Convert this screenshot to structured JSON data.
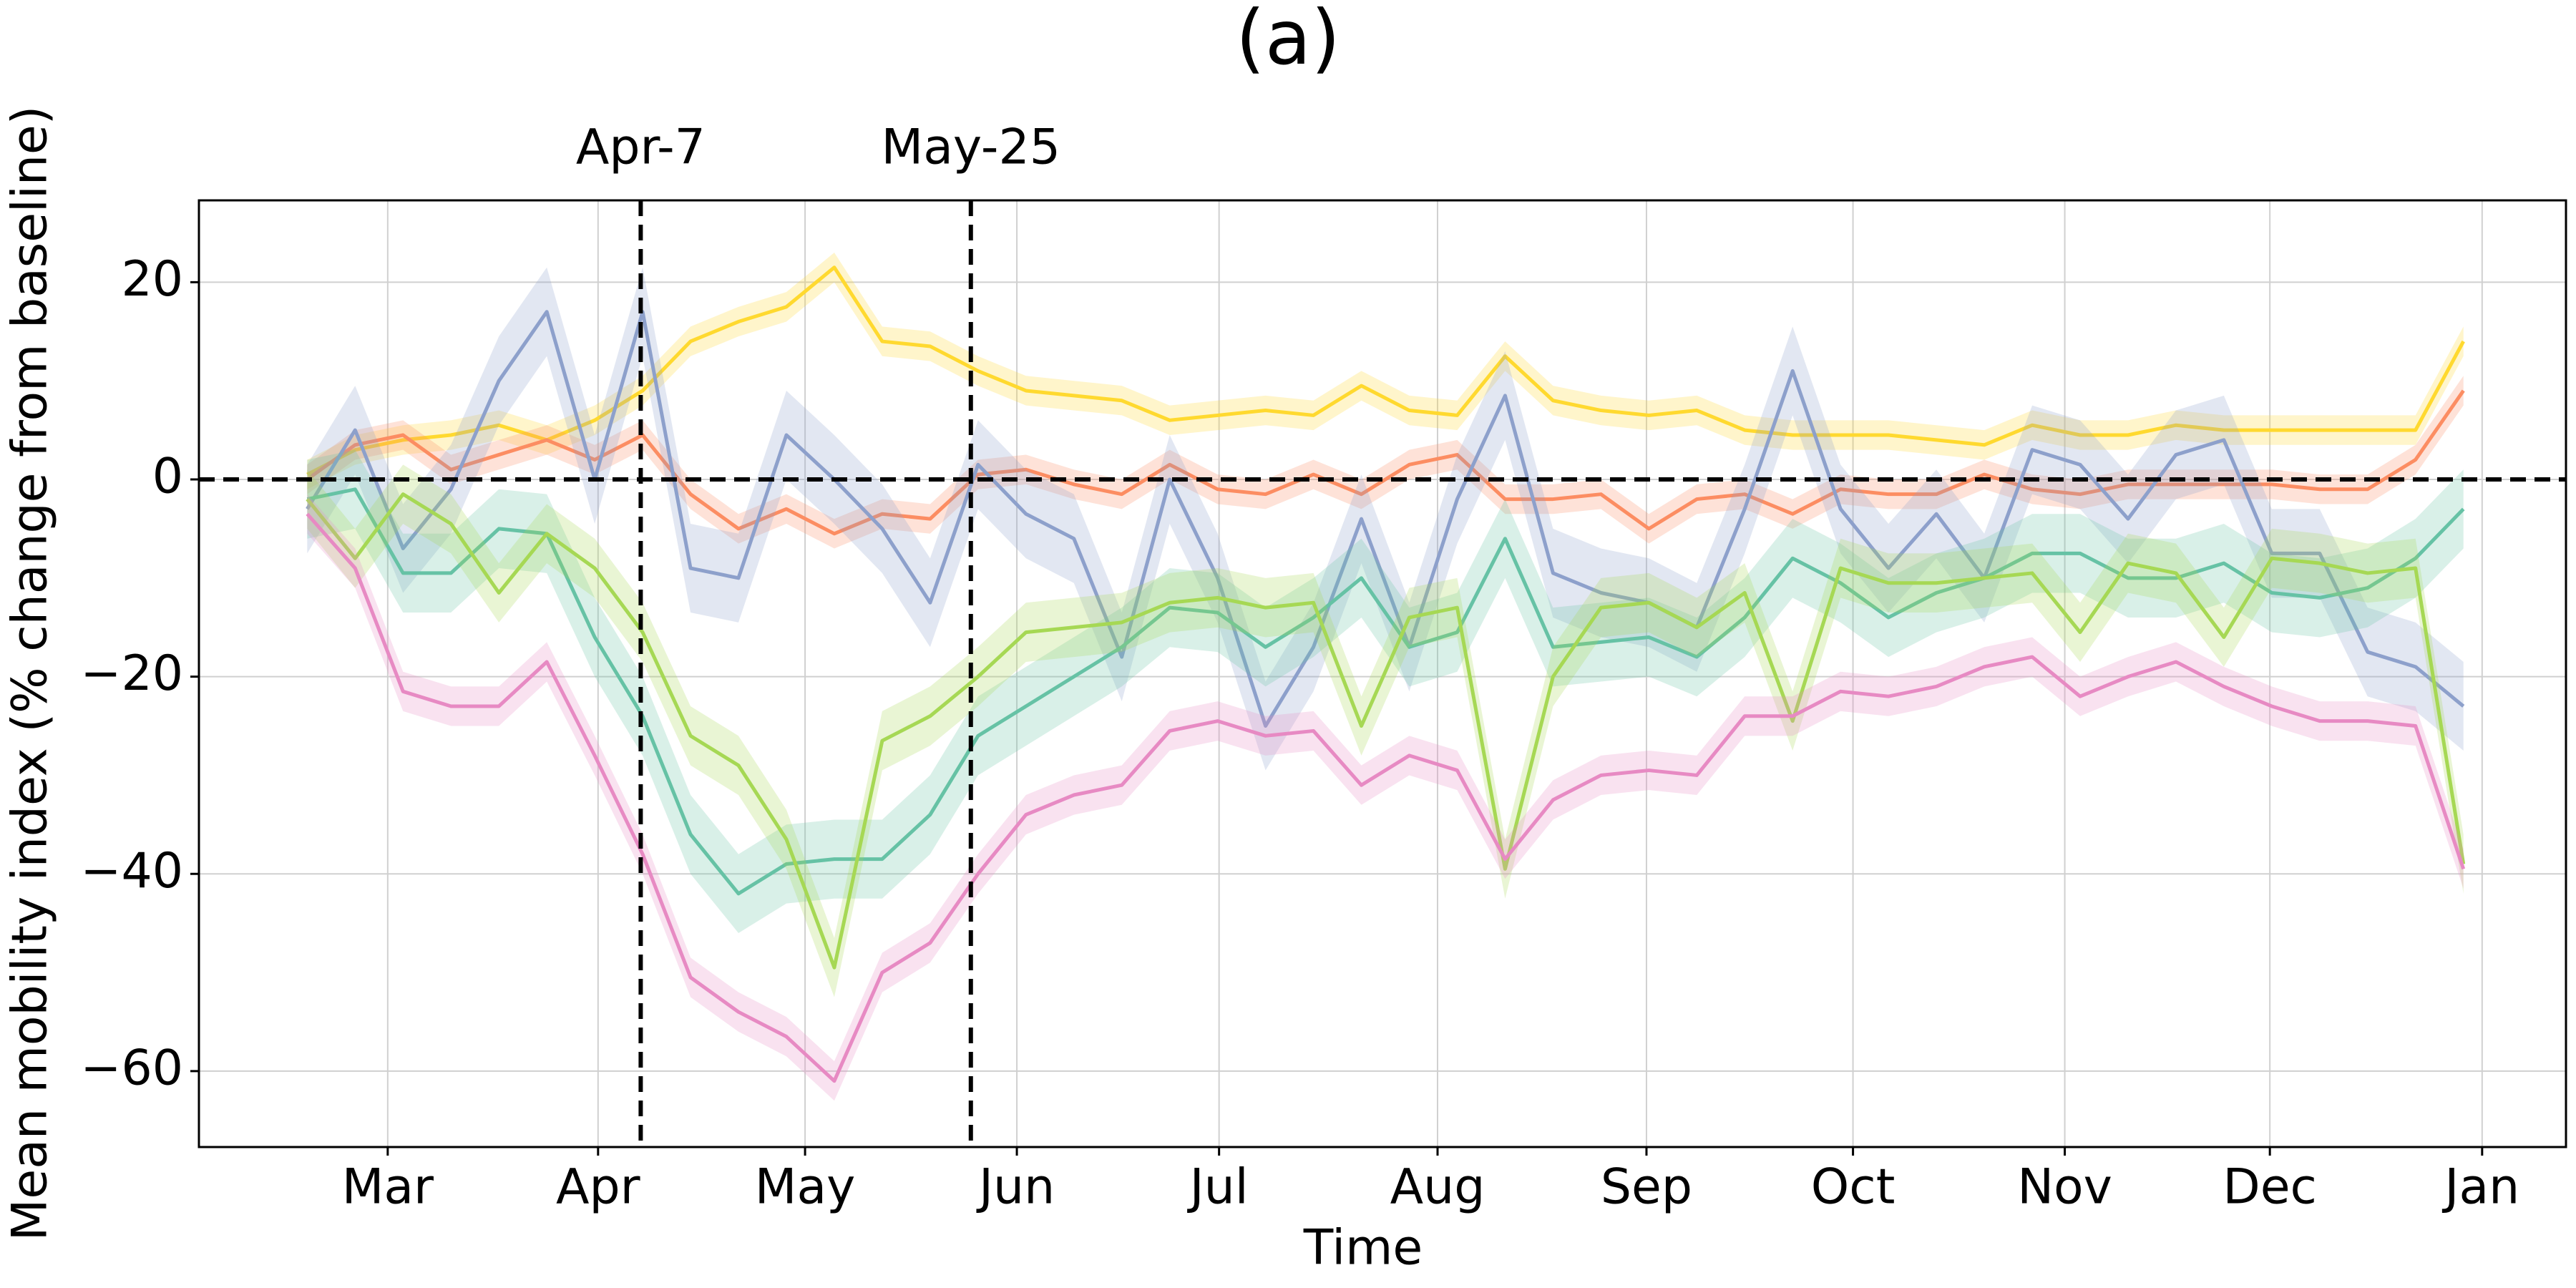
{
  "chart_data": {
    "type": "line",
    "title": "(a)",
    "xlabel": "Time",
    "ylabel": "Mean mobility index (% change from baseline)",
    "x": [
      0,
      1,
      2,
      3,
      4,
      5,
      6,
      7,
      8,
      9,
      10,
      11,
      12,
      13,
      14,
      15,
      16,
      17,
      18,
      19,
      20,
      21,
      22,
      23,
      24,
      25,
      26,
      27,
      28,
      29,
      30,
      31,
      32,
      33,
      34,
      35,
      36,
      37,
      38,
      39,
      40,
      41,
      42,
      43,
      44,
      45
    ],
    "xlim": [
      -2.26,
      47.14
    ],
    "xticks": [
      {
        "value": 1.68,
        "label": "Mar"
      },
      {
        "value": 6.07,
        "label": "Apr"
      },
      {
        "value": 10.39,
        "label": "May"
      },
      {
        "value": 14.81,
        "label": "Jun"
      },
      {
        "value": 19.03,
        "label": "Jul"
      },
      {
        "value": 23.59,
        "label": "Aug"
      },
      {
        "value": 27.95,
        "label": "Sep"
      },
      {
        "value": 32.26,
        "label": "Oct"
      },
      {
        "value": 36.68,
        "label": "Nov"
      },
      {
        "value": 40.96,
        "label": "Dec"
      },
      {
        "value": 45.39,
        "label": "Jan"
      }
    ],
    "ylim": [
      -67.7,
      28.3
    ],
    "yticks": [
      {
        "value": -60,
        "label": "−60"
      },
      {
        "value": -40,
        "label": "−40"
      },
      {
        "value": -20,
        "label": "−20"
      },
      0,
      20
    ],
    "grid": true,
    "hline": 0,
    "vlines": [
      {
        "x": 6.96,
        "label": "Apr-7"
      },
      {
        "x": 13.85,
        "label": "May-25"
      }
    ],
    "series": [
      {
        "color": "#ffd92f",
        "error": 1.5,
        "values": [
          0.5,
          3,
          4,
          4.5,
          5.5,
          4,
          6,
          9,
          14,
          16,
          17.5,
          21.5,
          14,
          13.5,
          11,
          9,
          8.5,
          8,
          6,
          6.5,
          7,
          6.5,
          9.5,
          7,
          6.5,
          12.5,
          8,
          7,
          6.5,
          7,
          5,
          4.5,
          4.5,
          4.5,
          4,
          3.5,
          5.5,
          4.5,
          4.5,
          5.5,
          5,
          5,
          5,
          5,
          5,
          14
        ]
      },
      {
        "color": "#fc8d62",
        "error": 1.5,
        "values": [
          0,
          3.5,
          4.5,
          1,
          2.5,
          4,
          2,
          4.5,
          -1.5,
          -5,
          -3,
          -5.5,
          -3.5,
          -4,
          0.5,
          1,
          -0.5,
          -1.5,
          1.5,
          -1,
          -1.5,
          0.5,
          -1.5,
          1.5,
          2.5,
          -2,
          -2,
          -1.5,
          -5,
          -2,
          -1.5,
          -3.5,
          -1,
          -1.5,
          -1.5,
          0.5,
          -1,
          -1.5,
          -0.5,
          -0.5,
          -0.5,
          -0.5,
          -1,
          -1,
          2,
          9
        ]
      },
      {
        "color": "#8da0cb",
        "error": 4.5,
        "values": [
          -3,
          5,
          -7,
          -1,
          10,
          17,
          0,
          17,
          -9,
          -10,
          4.5,
          0,
          -5,
          -12.5,
          1.5,
          -3.5,
          -6,
          -18,
          0,
          -10,
          -25,
          -17,
          -4,
          -17,
          -2,
          8.5,
          -9.5,
          -11.5,
          -12.5,
          -15,
          -3,
          11,
          -3,
          -9,
          -3.5,
          -10,
          3,
          1.5,
          -4,
          2.5,
          4,
          -7.5,
          -7.5,
          -17.5,
          -19,
          -23
        ]
      },
      {
        "color": "#66c2a5",
        "error": 4,
        "values": [
          -2,
          -1,
          -9.5,
          -9.5,
          -5,
          -5.5,
          -16,
          -24,
          -36,
          -42,
          -39,
          -38.5,
          -38.5,
          -34,
          -26,
          -23,
          -20,
          -17,
          -13,
          -13.5,
          -17,
          -14,
          -10,
          -17,
          -15.5,
          -6,
          -17,
          -16.5,
          -16,
          -18,
          -14,
          -8,
          -10.5,
          -14,
          -11.5,
          -10,
          -7.5,
          -7.5,
          -10,
          -10,
          -8.5,
          -11.5,
          -12,
          -11,
          -8,
          -3
        ]
      },
      {
        "color": "#a6d854",
        "error": 3,
        "values": [
          -2,
          -8,
          -1.5,
          -4.5,
          -11.5,
          -5.5,
          -9,
          -15.5,
          -26,
          -29,
          -36.5,
          -49.5,
          -26.5,
          -24,
          -20,
          -15.5,
          -15,
          -14.5,
          -12.5,
          -12,
          -13,
          -12.5,
          -25,
          -14,
          -13,
          -39.5,
          -20,
          -13,
          -12.5,
          -15,
          -11.5,
          -24.5,
          -9,
          -10.5,
          -10.5,
          -10,
          -9.5,
          -15.5,
          -8.5,
          -9.5,
          -16,
          -8,
          -8.5,
          -9.5,
          -9,
          -39
        ]
      },
      {
        "color": "#e78ac3",
        "error": 2,
        "values": [
          -3.5,
          -9,
          -21.5,
          -23,
          -23,
          -18.5,
          -28,
          -38,
          -50.5,
          -54,
          -56.5,
          -61,
          -50,
          -47,
          -40,
          -34,
          -32,
          -31,
          -25.5,
          -24.5,
          -26,
          -25.5,
          -31,
          -28,
          -29.5,
          -38.5,
          -32.5,
          -30,
          -29.5,
          -30,
          -24,
          -24,
          -21.5,
          -22,
          -21,
          -19,
          -18,
          -22,
          -20,
          -18.5,
          -21,
          -23,
          -24.5,
          -24.5,
          -25,
          -39.5
        ]
      }
    ]
  }
}
